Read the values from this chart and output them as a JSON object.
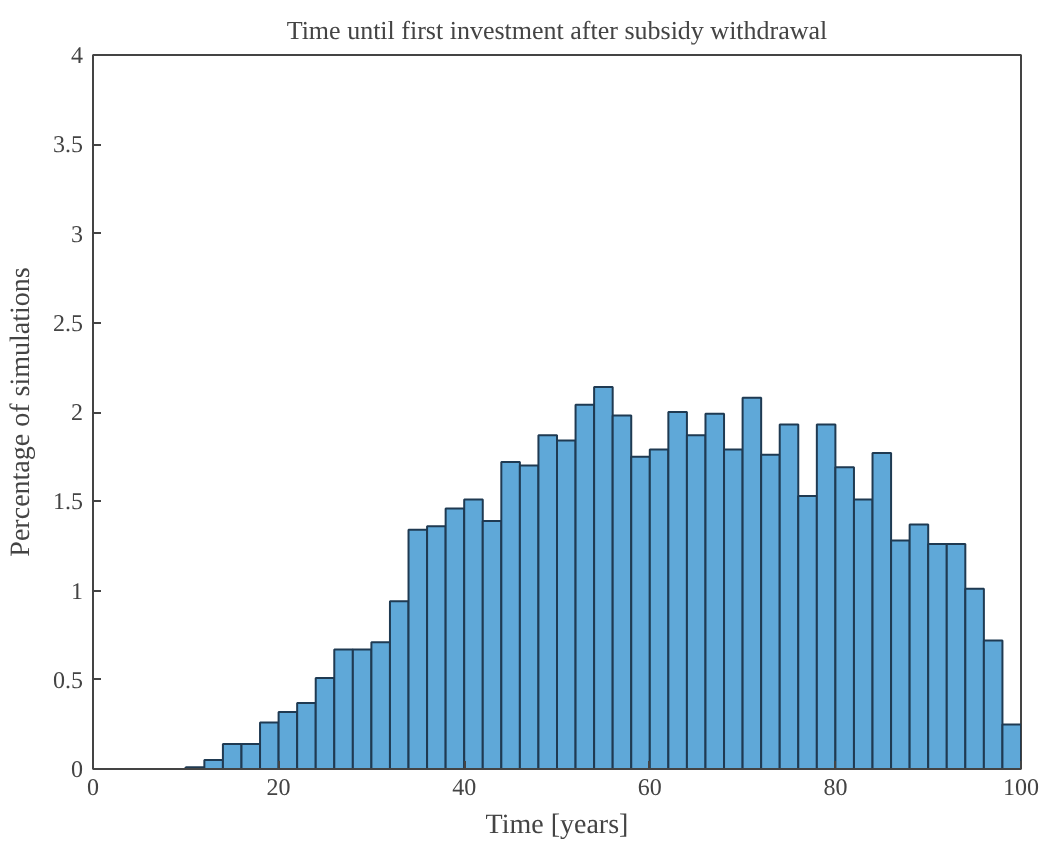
{
  "chart_data": {
    "type": "histogram",
    "title": "Time until first investment after subsidy withdrawal",
    "xlabel": "Time [years]",
    "ylabel": "Percentage of simulations",
    "bins": [
      0,
      2,
      4,
      6,
      8,
      10,
      12,
      14,
      16,
      18,
      20,
      22,
      24,
      26,
      28,
      30,
      32,
      34,
      36,
      38,
      40,
      42,
      44,
      46,
      48,
      50,
      52,
      54,
      56,
      58,
      60,
      62,
      64,
      66,
      68,
      70,
      72,
      74,
      76,
      78,
      80,
      82,
      84,
      86,
      88,
      90,
      92,
      94,
      96,
      98,
      100
    ],
    "values": [
      0,
      0,
      0,
      0,
      0,
      0.01,
      0.05,
      0.14,
      0.14,
      0.26,
      0.32,
      0.37,
      0.51,
      0.67,
      0.67,
      0.71,
      0.94,
      1.34,
      1.36,
      1.46,
      1.51,
      1.39,
      1.72,
      1.7,
      1.87,
      1.84,
      2.04,
      2.14,
      1.98,
      1.75,
      1.79,
      2.0,
      1.87,
      1.99,
      1.79,
      2.08,
      1.76,
      1.93,
      1.53,
      1.93,
      1.69,
      1.51,
      1.77,
      1.28,
      1.37,
      1.26,
      1.26,
      1.01,
      0.72,
      0.25
    ],
    "color": "#5fa8d8",
    "xlim": [
      0,
      100
    ],
    "xticks": [
      0,
      20,
      40,
      60,
      80,
      100
    ],
    "ylim": [
      0,
      4
    ],
    "yticks": [
      0,
      0.5,
      1,
      1.5,
      2,
      2.5,
      3,
      3.5,
      4
    ],
    "grid": false
  }
}
